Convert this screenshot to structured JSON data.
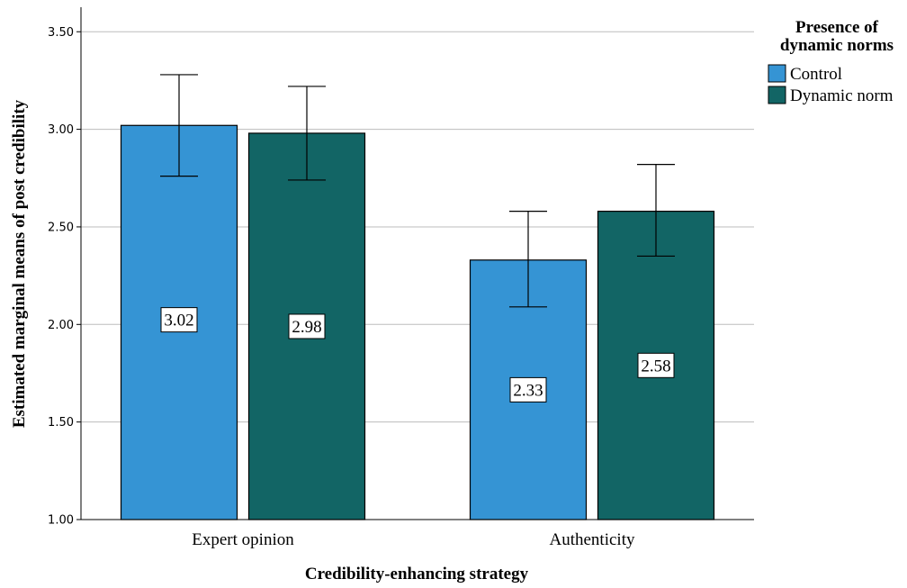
{
  "chart_data": {
    "type": "bar",
    "xlabel": "Credibility-enhancing strategy",
    "ylabel": "Estimated marginal means of post credibility",
    "ylim": [
      1.0,
      3.6
    ],
    "yticks": [
      "1.00",
      "1.50",
      "2.00",
      "2.50",
      "3.00",
      "3.50"
    ],
    "grid": true,
    "categories": [
      "Expert opinion",
      "Authenticity"
    ],
    "legend": {
      "title": [
        "Presence of",
        "dynamic norms"
      ],
      "position": "top-right"
    },
    "series": [
      {
        "name": "Control",
        "color": "#3594d4",
        "values": [
          3.02,
          2.33
        ],
        "labels": [
          "3.02",
          "2.33"
        ],
        "error_low": [
          2.76,
          2.09
        ],
        "error_high": [
          3.28,
          2.58
        ]
      },
      {
        "name": "Dynamic norm",
        "color": "#126565",
        "values": [
          2.98,
          2.58
        ],
        "labels": [
          "2.98",
          "2.58"
        ],
        "error_low": [
          2.74,
          2.35
        ],
        "error_high": [
          3.22,
          2.82
        ]
      }
    ]
  }
}
